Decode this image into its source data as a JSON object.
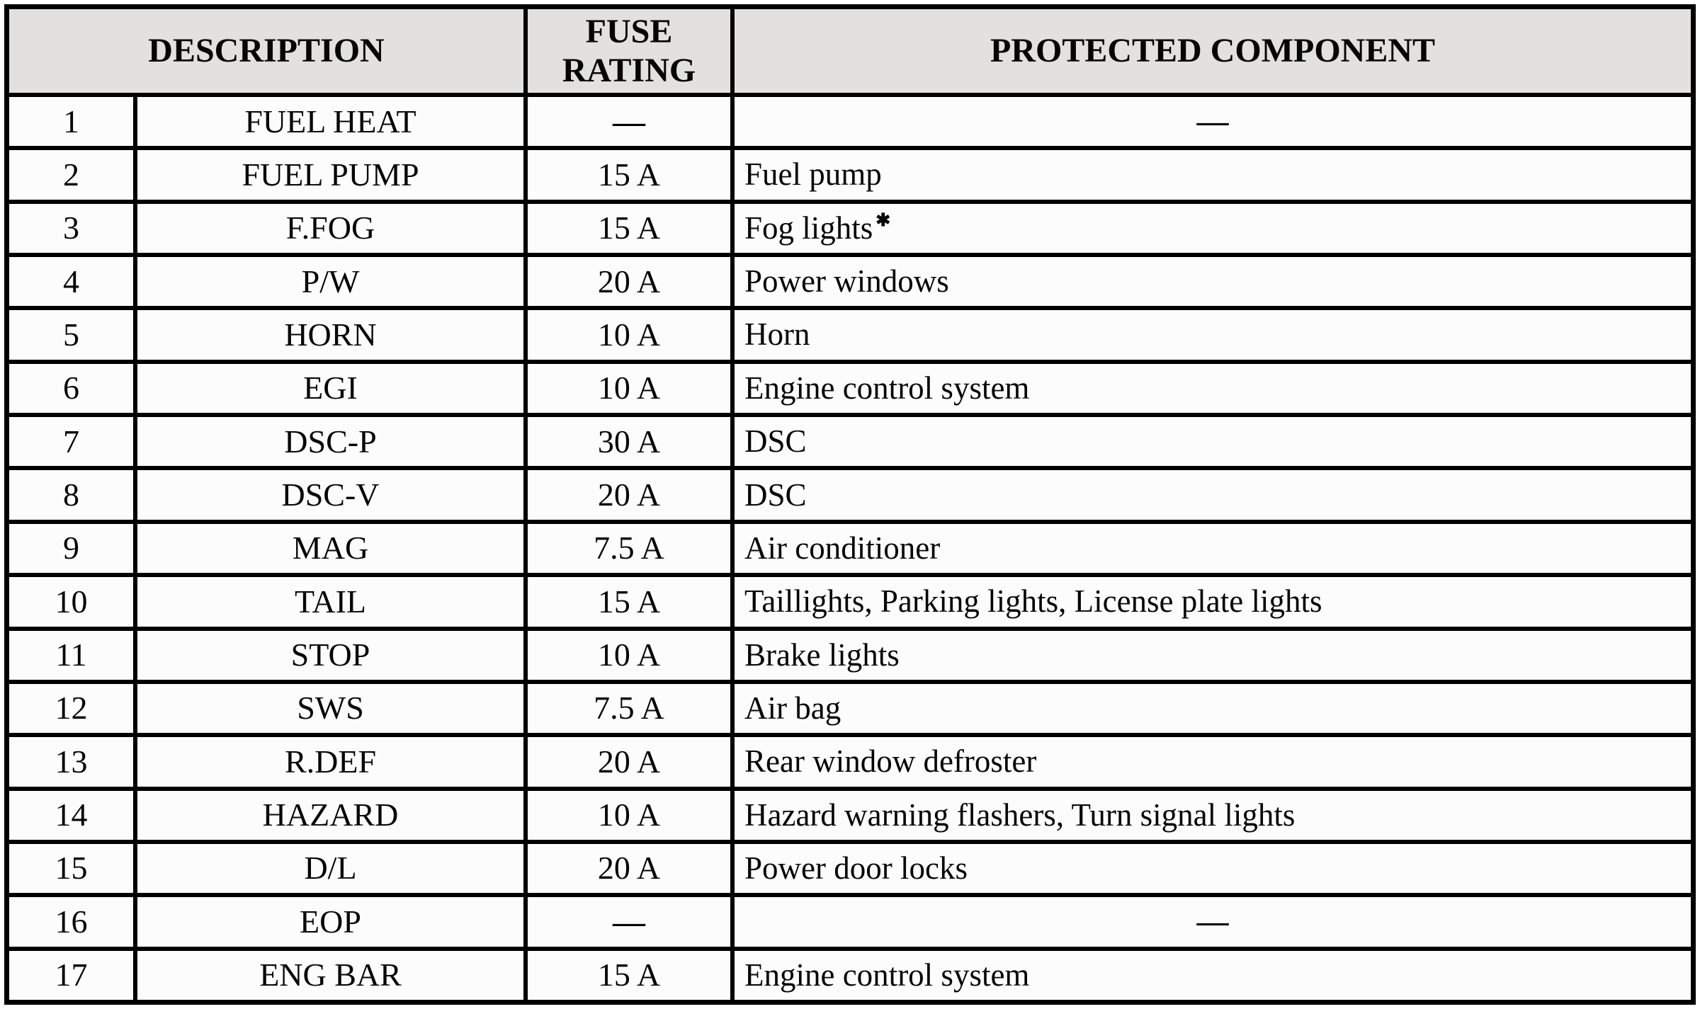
{
  "header": {
    "description": "DESCRIPTION",
    "fuse_rating": "FUSE RATING",
    "protected_component": "PROTECTED COMPONENT"
  },
  "rows": [
    {
      "no": "1",
      "description": "FUEL HEAT",
      "rating": "—",
      "component": "—"
    },
    {
      "no": "2",
      "description": "FUEL PUMP",
      "rating": "15 A",
      "component": "Fuel pump"
    },
    {
      "no": "3",
      "description": "F.FOG",
      "rating": "15 A",
      "component": "Fog lights",
      "component_footnote": "✱"
    },
    {
      "no": "4",
      "description": "P/W",
      "rating": "20 A",
      "component": "Power windows"
    },
    {
      "no": "5",
      "description": "HORN",
      "rating": "10 A",
      "component": "Horn"
    },
    {
      "no": "6",
      "description": "EGI",
      "rating": "10 A",
      "component": "Engine control system"
    },
    {
      "no": "7",
      "description": "DSC-P",
      "rating": "30 A",
      "component": "DSC"
    },
    {
      "no": "8",
      "description": "DSC-V",
      "rating": "20 A",
      "component": "DSC"
    },
    {
      "no": "9",
      "description": "MAG",
      "rating": "7.5 A",
      "component": "Air conditioner"
    },
    {
      "no": "10",
      "description": "TAIL",
      "rating": "15 A",
      "component": "Taillights, Parking lights, License plate lights"
    },
    {
      "no": "11",
      "description": "STOP",
      "rating": "10 A",
      "component": "Brake lights"
    },
    {
      "no": "12",
      "description": "SWS",
      "rating": "7.5 A",
      "component": "Air bag"
    },
    {
      "no": "13",
      "description": "R.DEF",
      "rating": "20 A",
      "component": "Rear window defroster"
    },
    {
      "no": "14",
      "description": "HAZARD",
      "rating": "10 A",
      "component": "Hazard warning flashers, Turn signal lights"
    },
    {
      "no": "15",
      "description": "D/L",
      "rating": "20 A",
      "component": "Power door locks"
    },
    {
      "no": "16",
      "description": "EOP",
      "rating": "—",
      "component": "—"
    },
    {
      "no": "17",
      "description": "ENG BAR",
      "rating": "15 A",
      "component": "Engine control system"
    }
  ],
  "colors": {
    "border": "#000000",
    "header_bg": "#e2e1df",
    "cell_bg": "#fcfcfc",
    "text": "#050505"
  }
}
